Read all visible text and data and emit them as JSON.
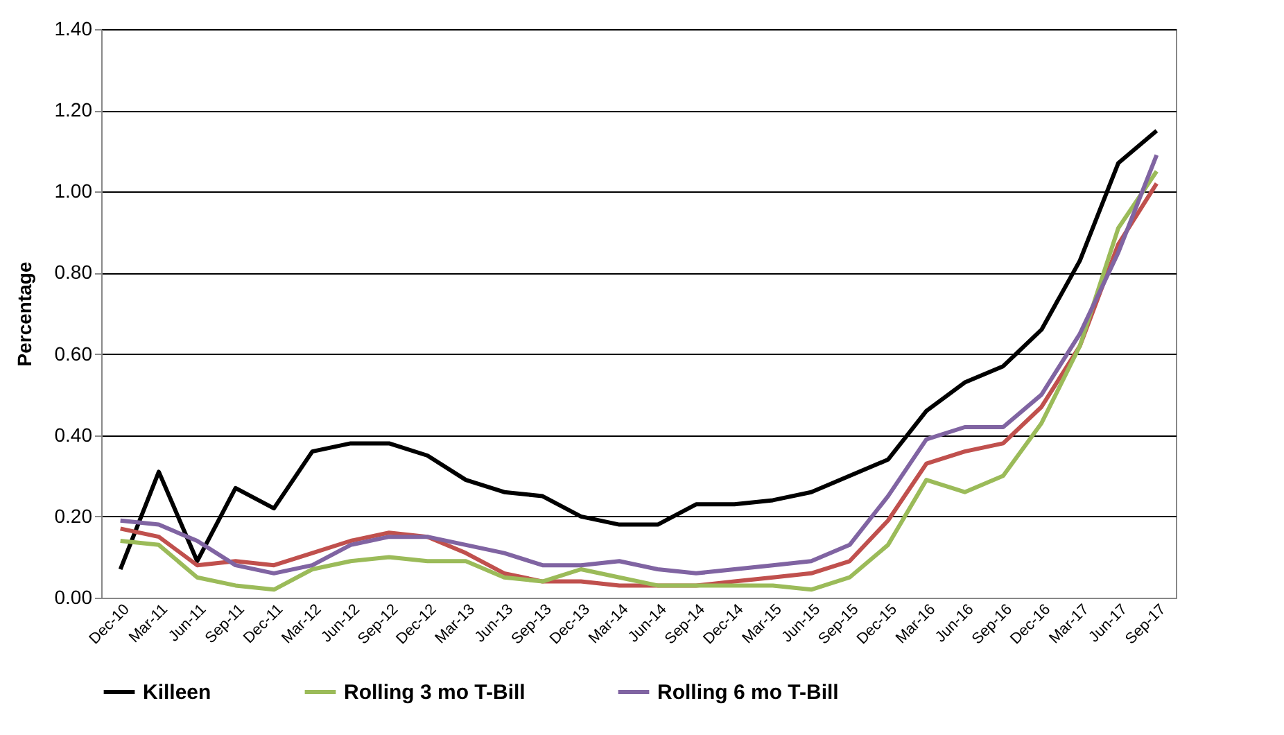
{
  "chart_data": {
    "type": "line",
    "ylabel": "Percentage",
    "categories": [
      "Dec-10",
      "Mar-11",
      "Jun-11",
      "Sep-11",
      "Dec-11",
      "Mar-12",
      "Jun-12",
      "Sep-12",
      "Dec-12",
      "Mar-13",
      "Jun-13",
      "Sep-13",
      "Dec-13",
      "Mar-14",
      "Jun-14",
      "Sep-14",
      "Dec-14",
      "Mar-15",
      "Jun-15",
      "Sep-15",
      "Dec-15",
      "Mar-16",
      "Jun-16",
      "Sep-16",
      "Dec-16",
      "Mar-17",
      "Jun-17",
      "Sep-17"
    ],
    "series": [
      {
        "name": "Killeen",
        "color": "#000000",
        "values": [
          0.07,
          0.31,
          0.09,
          0.27,
          0.22,
          0.36,
          0.38,
          0.38,
          0.35,
          0.29,
          0.26,
          0.25,
          0.2,
          0.18,
          0.18,
          0.23,
          0.23,
          0.24,
          0.26,
          0.3,
          0.34,
          0.46,
          0.53,
          0.57,
          0.66,
          0.83,
          1.07,
          1.15
        ]
      },
      {
        "color": "#c0504d",
        "values": [
          0.17,
          0.15,
          0.08,
          0.09,
          0.08,
          0.11,
          0.14,
          0.16,
          0.15,
          0.11,
          0.06,
          0.04,
          0.04,
          0.03,
          0.03,
          0.03,
          0.04,
          0.05,
          0.06,
          0.09,
          0.19,
          0.33,
          0.36,
          0.38,
          0.47,
          0.62,
          0.87,
          1.02
        ]
      },
      {
        "name": "Rolling 3 mo T-Bill",
        "color": "#9bbb59",
        "values": [
          0.14,
          0.13,
          0.05,
          0.03,
          0.02,
          0.07,
          0.09,
          0.1,
          0.09,
          0.09,
          0.05,
          0.04,
          0.07,
          0.05,
          0.03,
          0.03,
          0.03,
          0.03,
          0.02,
          0.05,
          0.13,
          0.29,
          0.26,
          0.3,
          0.43,
          0.62,
          0.91,
          1.05
        ]
      },
      {
        "name": "Rolling 6 mo T-Bill",
        "color": "#8064a2",
        "values": [
          0.19,
          0.18,
          0.14,
          0.08,
          0.06,
          0.08,
          0.13,
          0.15,
          0.15,
          0.13,
          0.11,
          0.08,
          0.08,
          0.09,
          0.07,
          0.06,
          0.07,
          0.08,
          0.09,
          0.13,
          0.25,
          0.39,
          0.42,
          0.42,
          0.5,
          0.65,
          0.85,
          1.09
        ]
      }
    ],
    "ylim": [
      0,
      1.4
    ],
    "yticks": [
      {
        "value": 0,
        "label": "0.00"
      },
      {
        "value": 0.2,
        "label": "0.20"
      },
      {
        "value": 0.4,
        "label": "0.40"
      },
      {
        "value": 0.6,
        "label": "0.60"
      },
      {
        "value": 0.8,
        "label": "0.80"
      },
      {
        "value": 1.0,
        "label": "1.00"
      },
      {
        "value": 1.2,
        "label": "1.20"
      },
      {
        "value": 1.4,
        "label": "1.40"
      }
    ],
    "grid": "y",
    "legend": "bottom",
    "marker": "none",
    "line_style": "solid"
  }
}
